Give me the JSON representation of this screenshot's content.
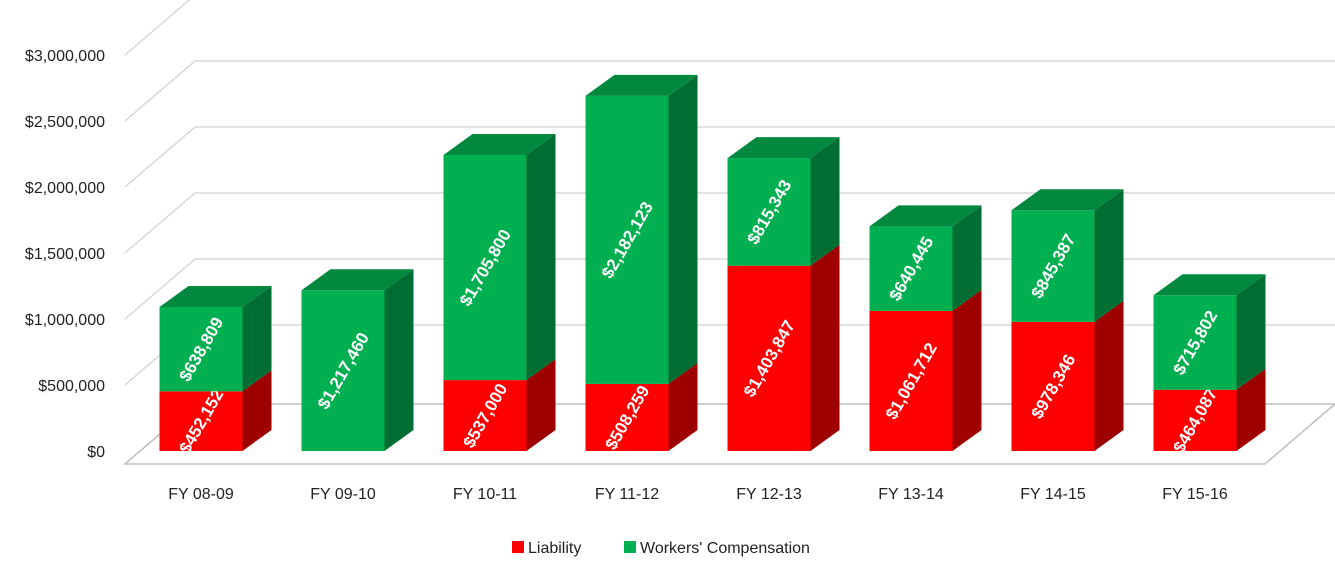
{
  "chart_data": {
    "type": "bar",
    "stacked": true,
    "style": "3d-column",
    "categories": [
      "FY 08-09",
      "FY 09-10",
      "FY 10-11",
      "FY 11-12",
      "FY 12-13",
      "FY 13-14",
      "FY 14-15",
      "FY 15-16"
    ],
    "series": [
      {
        "name": "Liability",
        "color": "#ff0000",
        "values": [
          452152,
          0,
          537000,
          508259,
          1403847,
          1061712,
          978346,
          464087
        ],
        "labels": [
          "$452,152",
          "",
          "$537,000",
          "$508,259",
          "$1,403,847",
          "$1,061,712",
          "$978,346",
          "$464,087"
        ]
      },
      {
        "name": "Workers' Compensation",
        "color": "#00b050",
        "values": [
          638809,
          1217460,
          1705800,
          2182123,
          815343,
          640445,
          845387,
          715802
        ],
        "labels": [
          "$638,809",
          "$1,217,460",
          "$1,705,800",
          "$2,182,123",
          "$815,343",
          "$640,445",
          "$845,387",
          "$715,802"
        ]
      }
    ],
    "yticks": [
      "$0",
      "$500,000",
      "$1,000,000",
      "$1,500,000",
      "$2,000,000",
      "$2,500,000",
      "$3,000,000"
    ],
    "ylim": [
      0,
      3500000
    ],
    "grid": true,
    "legend_position": "bottom"
  }
}
